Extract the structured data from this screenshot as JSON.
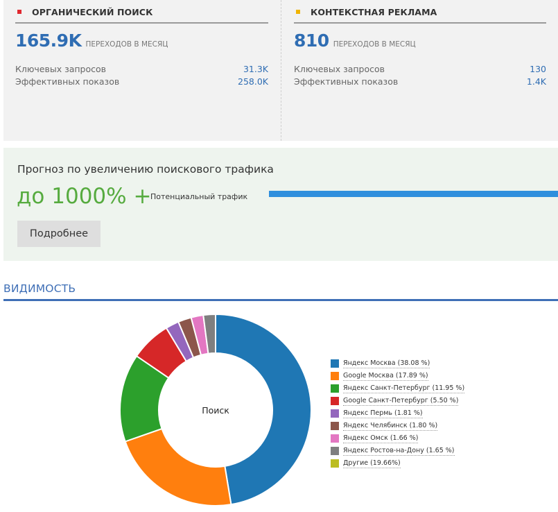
{
  "organic": {
    "title": "ОРГАНИЧЕСКИЙ ПОИСК",
    "color": "#e0282f",
    "big_value": "165.9K",
    "big_unit": "ПЕРЕХОДОВ В МЕСЯЦ",
    "rows": [
      {
        "label": "Ключевых запросов",
        "value": "31.3K"
      },
      {
        "label": "Эффективных показов",
        "value": "258.0K"
      }
    ]
  },
  "context": {
    "title": "КОНТЕКСТНАЯ РЕКЛАМА",
    "color": "#f0b400",
    "big_value": "810",
    "big_unit": "ПЕРЕХОДОВ В МЕСЯЦ",
    "rows": [
      {
        "label": "Ключевых запросов",
        "value": "130"
      },
      {
        "label": "Эффективных показов",
        "value": "1.4K"
      }
    ]
  },
  "forecast": {
    "title": "Прогноз по увеличению поискового трафика",
    "big": "до 1000% +",
    "bar_label": "Потенциальный трафик",
    "bar_fill_percent": 100,
    "button_label": "Подробнее"
  },
  "visibility": {
    "title": "ВИДИМОСТЬ"
  },
  "chart_data": {
    "type": "pie",
    "center_label": "Поиск",
    "legend_position": "right",
    "slices": [
      {
        "label": "Яндекс Москва (38.08 %)",
        "value": 38.08,
        "color": "#1f77b4"
      },
      {
        "label": "Google Москва (17.89 %)",
        "value": 17.89,
        "color": "#ff7f0e"
      },
      {
        "label": "Яндекс Санкт-Петербург (11.95 %)",
        "value": 11.95,
        "color": "#2ca02c"
      },
      {
        "label": "Google Санкт-Петербург (5.50 %)",
        "value": 5.5,
        "color": "#d62728"
      },
      {
        "label": "Яндекс Пермь (1.81 %)",
        "value": 1.81,
        "color": "#9467bd"
      },
      {
        "label": "Яндекс Челябинск (1.80 %)",
        "value": 1.8,
        "color": "#8c564b"
      },
      {
        "label": "Яндекс Омск (1.66 %)",
        "value": 1.66,
        "color": "#e377c2"
      },
      {
        "label": "Яндекс Ростов-на-Дону (1.65 %)",
        "value": 1.65,
        "color": "#7f7f7f"
      },
      {
        "label": "Другие (19.66%)",
        "value": 19.66,
        "color": "#bcbd22"
      }
    ]
  }
}
